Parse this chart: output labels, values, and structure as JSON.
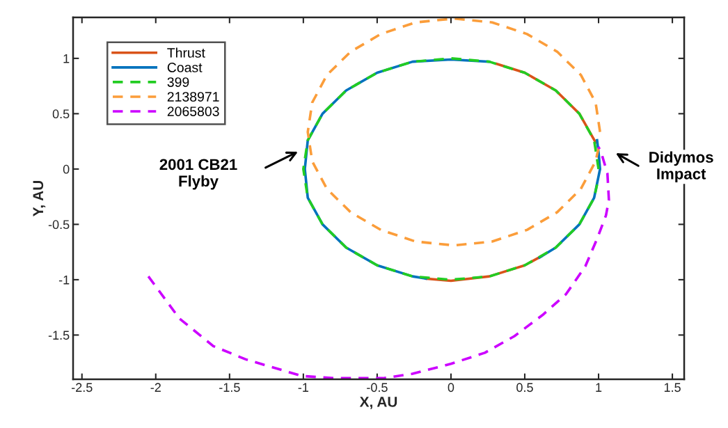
{
  "chart_data": {
    "type": "line",
    "xlabel": "X, AU",
    "ylabel": "Y, AU",
    "xlim": [
      -2.56,
      1.58
    ],
    "ylim": [
      -1.9,
      1.37
    ],
    "xticks": [
      -2.5,
      -2,
      -1.5,
      -1,
      -0.5,
      0,
      0.5,
      1,
      1.5
    ],
    "yticks": [
      -1.5,
      -1,
      -0.5,
      0,
      0.5,
      1
    ],
    "grid": false,
    "legend": "top left",
    "series": [
      {
        "name": "Thrust",
        "color": "#d95319",
        "line_style": "solid",
        "x": [
          0.31,
          0.5,
          0.71,
          0.87,
          0.98,
          null,
          -0.17,
          0,
          0.26,
          0.5,
          0.61
        ],
        "values": [
          0.95,
          0.87,
          0.71,
          0.5,
          0.24,
          null,
          -0.99,
          -1.01,
          -0.97,
          -0.87,
          -0.79
        ]
      },
      {
        "name": "Coast",
        "color": "#0072bd",
        "line_style": "solid",
        "x": [
          0.26,
          0,
          -0.26,
          -0.5,
          -0.71,
          -0.87,
          -0.97,
          -0.99,
          -0.97,
          -0.87,
          -0.71,
          -0.5,
          -0.26,
          -0.17,
          null,
          0.6,
          0.71,
          0.87,
          0.97,
          1.01,
          1.0,
          0.99
        ],
        "values": [
          0.97,
          0.99,
          0.97,
          0.87,
          0.71,
          0.5,
          0.26,
          0,
          -0.26,
          -0.5,
          -0.71,
          -0.87,
          -0.97,
          -0.99,
          null,
          -0.8,
          -0.71,
          -0.5,
          -0.26,
          0,
          0.15,
          0.26
        ]
      },
      {
        "name": "399",
        "color": "#22cc22",
        "line_style": "dashed",
        "x": [
          1.0,
          0.97,
          0.87,
          0.71,
          0.5,
          0.26,
          0,
          -0.26,
          -0.5,
          -0.71,
          -0.87,
          -0.97,
          -1.0,
          -0.97,
          -0.87,
          -0.71,
          -0.5,
          -0.26,
          0,
          0.26,
          0.5,
          0.71,
          0.87,
          0.97,
          0.99
        ],
        "values": [
          0,
          0.26,
          0.5,
          0.71,
          0.87,
          0.97,
          1.0,
          0.97,
          0.87,
          0.71,
          0.5,
          0.26,
          0,
          -0.26,
          -0.5,
          -0.71,
          -0.87,
          -0.97,
          -1.0,
          -0.97,
          -0.87,
          -0.71,
          -0.5,
          -0.26,
          -0.14
        ]
      },
      {
        "name": "2138971",
        "color": "#fb9d3a",
        "line_style": "dashed",
        "x": [
          1.01,
          0.98,
          0.88,
          0.72,
          0.515,
          0.28,
          0.02,
          -0.24,
          -0.475,
          -0.68,
          -0.84,
          -0.94,
          -0.97,
          -0.94,
          -0.84,
          -0.68,
          -0.475,
          -0.24,
          0.02,
          0.28,
          0.515,
          0.72,
          0.88,
          0.98,
          1.0
        ],
        "values": [
          0.335,
          0.6,
          0.85,
          1.06,
          1.22,
          1.325,
          1.36,
          1.325,
          1.22,
          1.06,
          0.85,
          0.6,
          0.335,
          0.07,
          -0.18,
          -0.39,
          -0.55,
          -0.655,
          -0.69,
          -0.655,
          -0.55,
          -0.39,
          -0.18,
          0.07,
          0.19
        ]
      },
      {
        "name": "2065803",
        "color": "#cc00ff",
        "line_style": "dashed",
        "x": [
          -2.05,
          -1.84,
          -1.61,
          -1.39,
          -1.01,
          -0.79,
          -0.46,
          -0.26,
          0,
          0.23,
          0.43,
          0.62,
          0.78,
          0.91,
          0.99,
          1.05,
          1.07,
          1.06,
          1.02,
          1.0
        ],
        "values": [
          -0.97,
          -1.35,
          -1.6,
          -1.72,
          -1.87,
          -1.89,
          -1.89,
          -1.85,
          -1.76,
          -1.66,
          -1.51,
          -1.32,
          -1.13,
          -0.88,
          -0.63,
          -0.42,
          -0.28,
          -0.04,
          0.14,
          0.2
        ]
      }
    ],
    "annotations": [
      "2001 CB21\nFlyby",
      "Didymos\nImpact"
    ]
  }
}
